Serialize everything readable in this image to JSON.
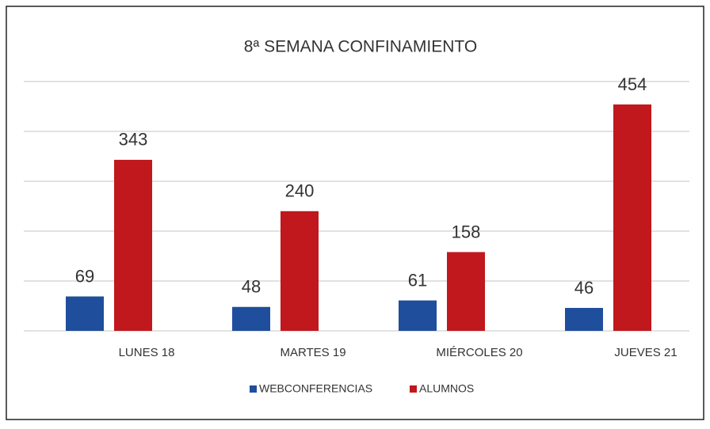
{
  "chart_data": {
    "type": "bar",
    "title": "8ª SEMANA  CONFINAMIENTO",
    "categories": [
      "LUNES 18",
      "MARTES 19",
      "MIÉRCOLES 20",
      "JUEVES  21"
    ],
    "series": [
      {
        "name": "WEBCONFERENCIAS",
        "color": "#1f4e9c",
        "values": [
          69,
          48,
          61,
          46
        ]
      },
      {
        "name": "ALUMNOS",
        "color": "#c0181c",
        "values": [
          343,
          240,
          158,
          454
        ]
      }
    ],
    "ylim": [
      0,
      500
    ],
    "yticks": [
      0,
      100,
      200,
      300,
      400,
      500
    ],
    "grid": true,
    "legend": "bottom"
  }
}
